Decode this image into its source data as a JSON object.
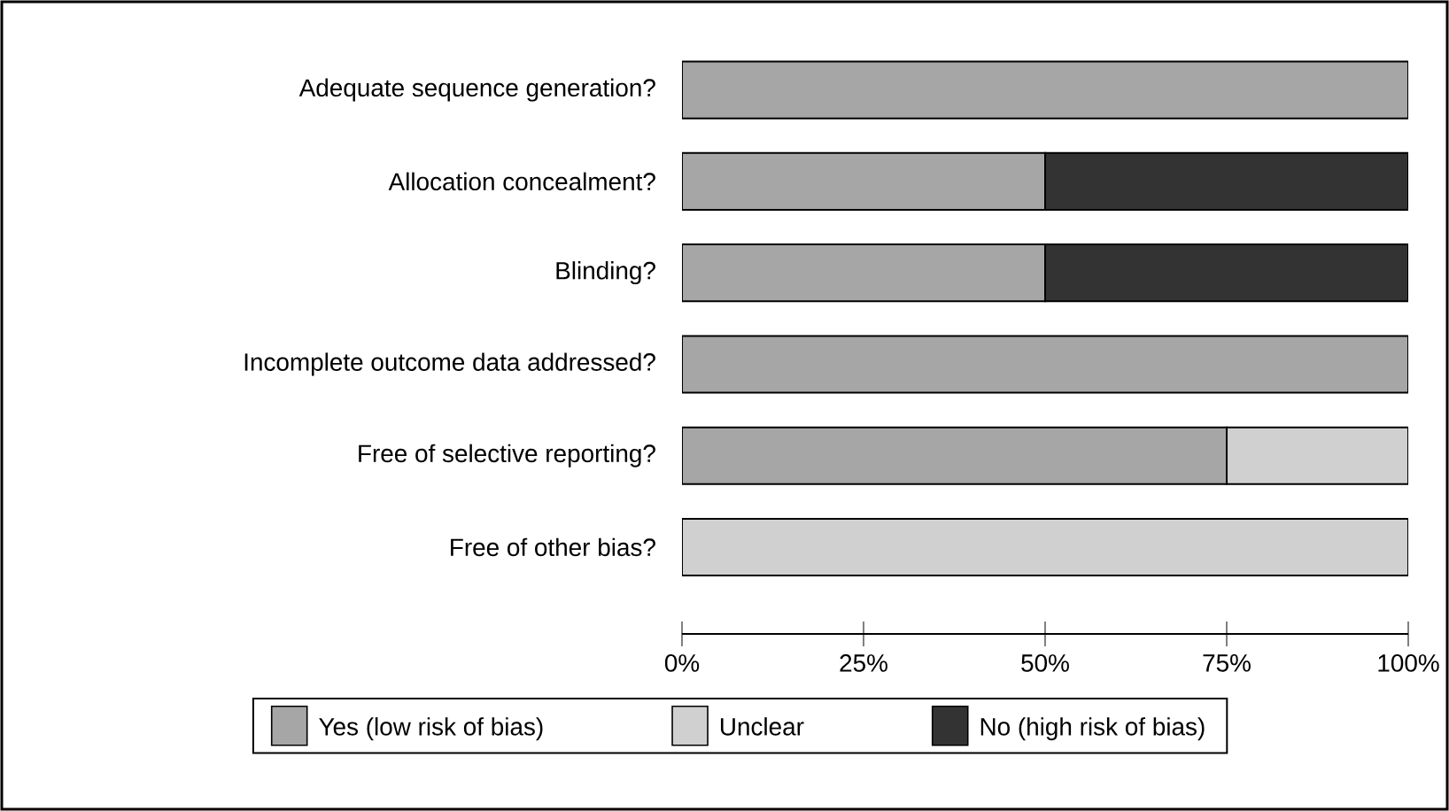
{
  "chart_data": {
    "type": "bar",
    "orientation": "horizontal",
    "stacked": true,
    "categories": [
      "Adequate sequence generation?",
      "Allocation concealment?",
      "Blinding?",
      "Incomplete outcome data addressed?",
      "Free of selective reporting?",
      "Free of other bias?"
    ],
    "series": [
      {
        "name": "Yes (low risk of bias)",
        "color": "#a6a6a6",
        "values": [
          100,
          50,
          50,
          100,
          75,
          0
        ]
      },
      {
        "name": "Unclear",
        "color": "#d0d0d0",
        "values": [
          0,
          0,
          0,
          0,
          25,
          100
        ]
      },
      {
        "name": "No (high risk of bias)",
        "color": "#333333",
        "values": [
          0,
          50,
          50,
          0,
          0,
          0
        ]
      }
    ],
    "xlim": [
      0,
      100
    ],
    "xticks": [
      {
        "value": 0,
        "label": "0%"
      },
      {
        "value": 25,
        "label": "25%"
      },
      {
        "value": 50,
        "label": "50%"
      },
      {
        "value": 75,
        "label": "75%"
      },
      {
        "value": 100,
        "label": "100%"
      }
    ],
    "legend": "bottom",
    "grid": false
  }
}
